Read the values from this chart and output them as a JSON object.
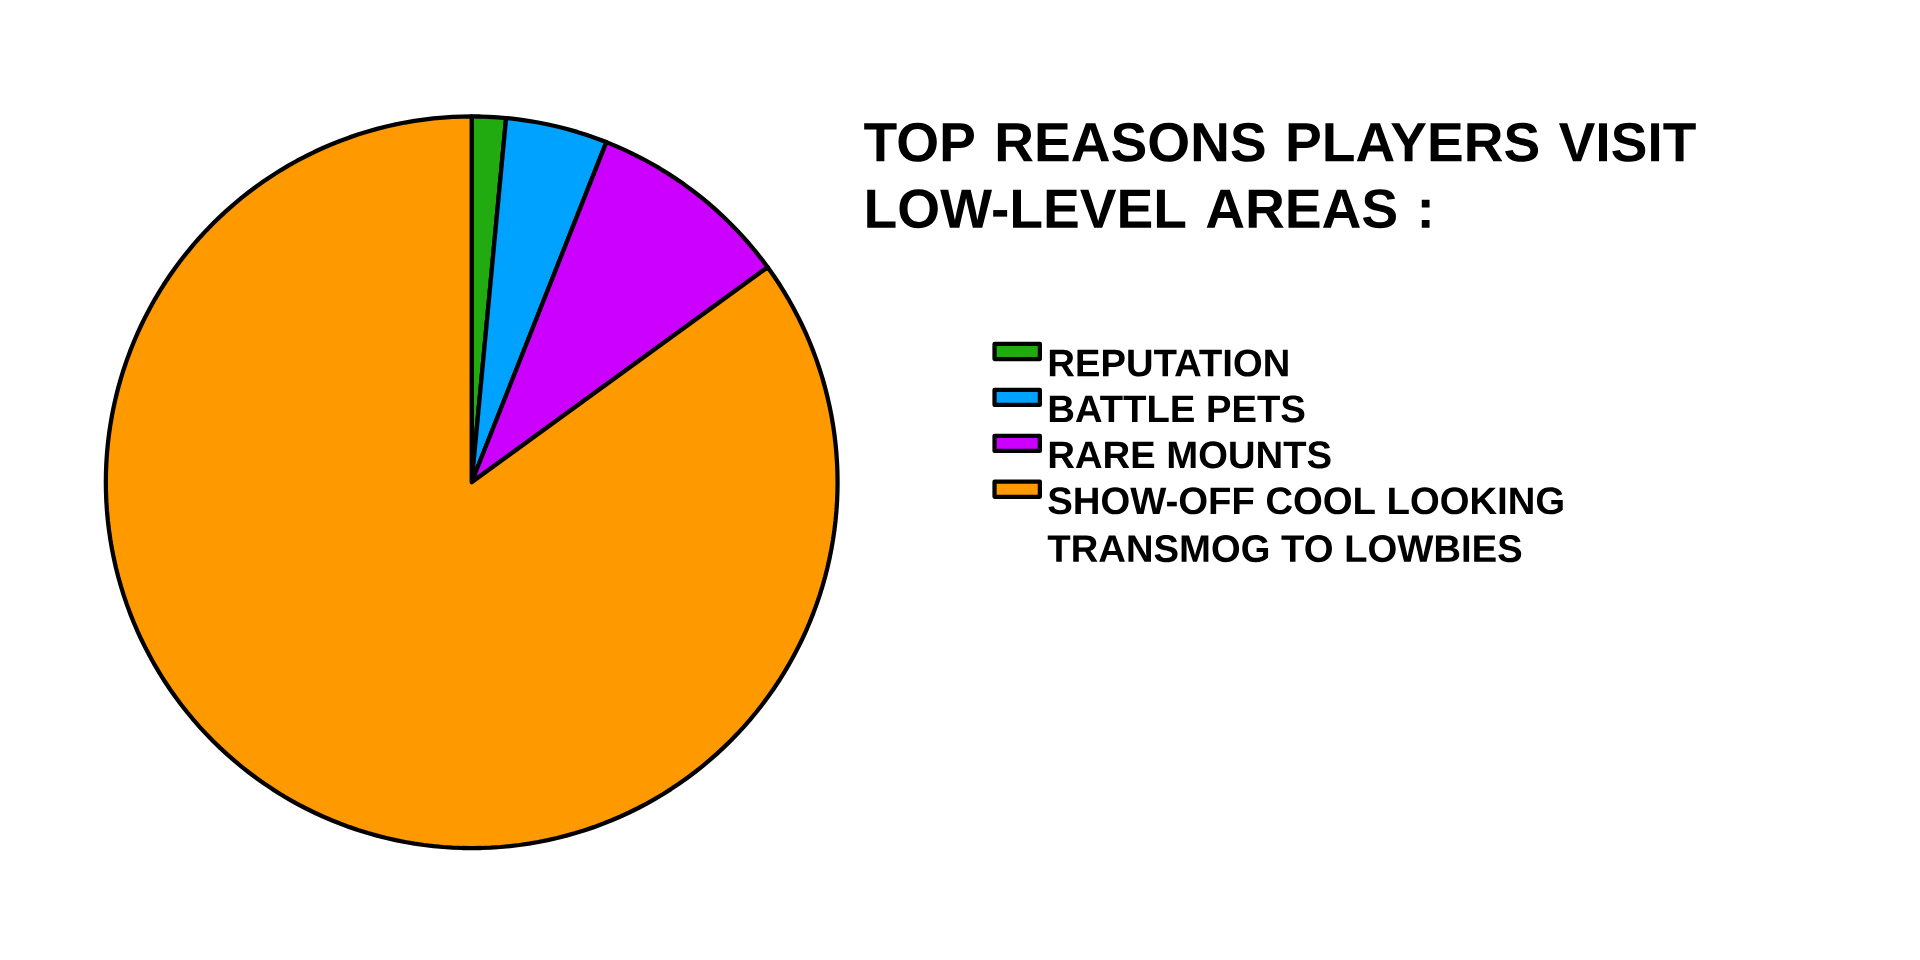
{
  "chart_data": {
    "type": "pie",
    "title": "TOP REASONS PLAYERS VISIT LOW-LEVEL AREAS :",
    "categories": [
      "REPUTATION",
      "BATTLE PETS",
      "RARE MOUNTS",
      "SHOW-OFF COOL LOOKING TRANSMOG TO LOWBIES"
    ],
    "values": [
      1.5,
      4.5,
      9,
      85
    ],
    "colors": [
      "#22aa11",
      "#00a2ff",
      "#cc00ff",
      "#ff9900"
    ],
    "legend": "right"
  }
}
